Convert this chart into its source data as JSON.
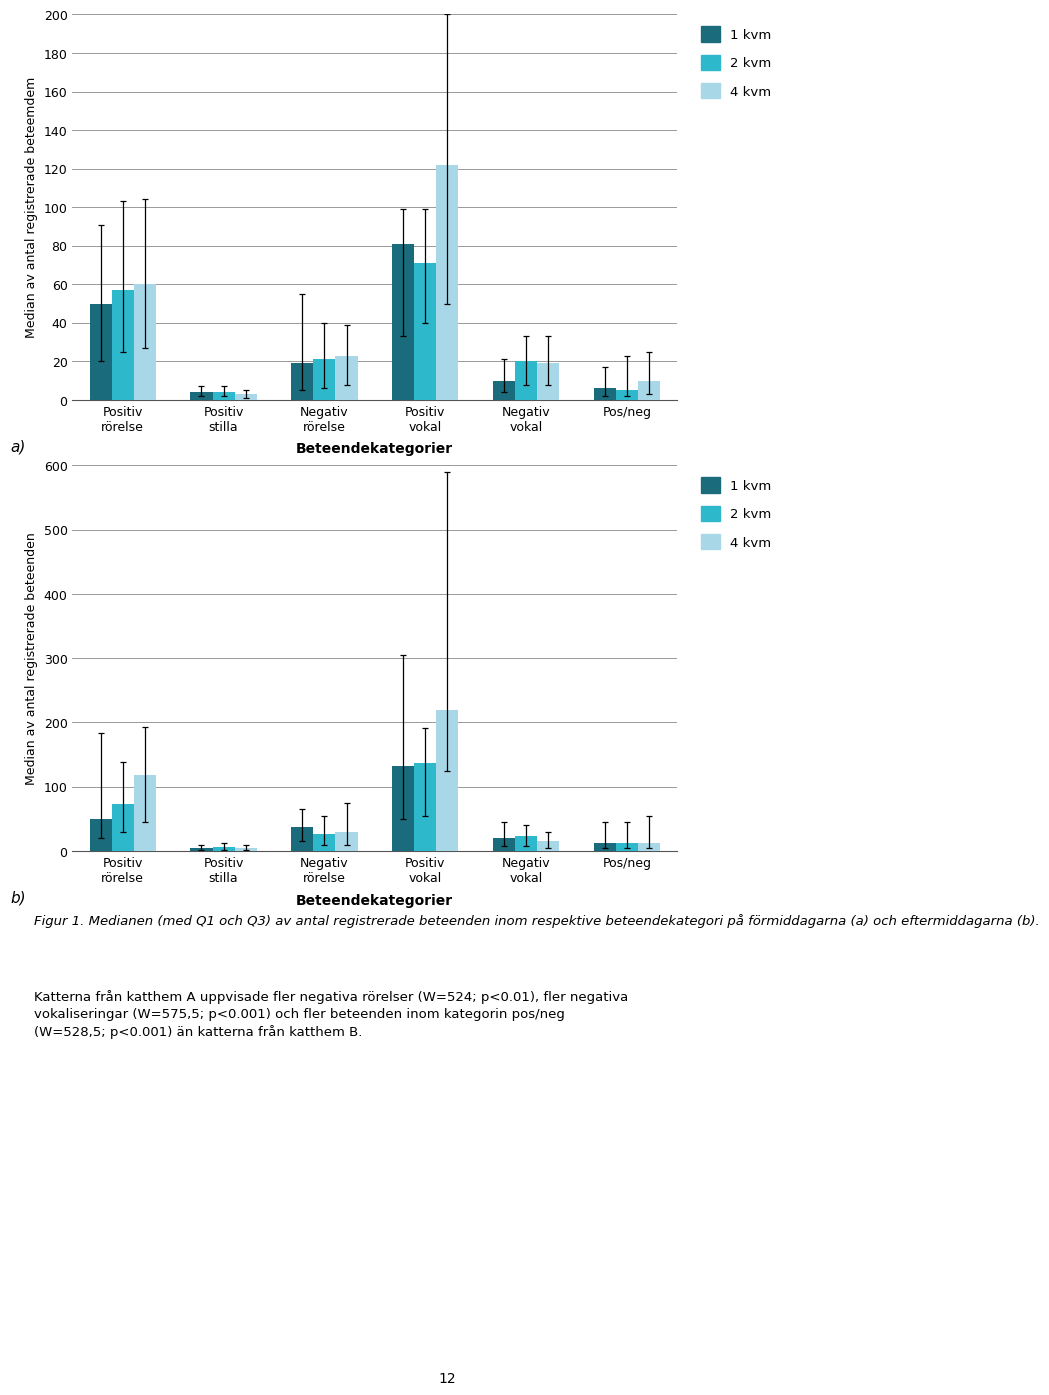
{
  "chart1": {
    "ylabel": "Median av antal registrerade beteemdem",
    "xlabel": "Beteendekategorier",
    "ylim": [
      0,
      200
    ],
    "yticks": [
      0,
      20,
      40,
      60,
      80,
      100,
      120,
      140,
      160,
      180,
      200
    ],
    "categories": [
      "Positiv\nrörelse",
      "Positiv\nstilla",
      "Negativ\nrörelse",
      "Positiv\nvokal",
      "Negativ\nvokal",
      "Pos/neg"
    ],
    "medians": [
      [
        50,
        4,
        19,
        81,
        10,
        6
      ],
      [
        57,
        4,
        21,
        71,
        20,
        5
      ],
      [
        60,
        3,
        23,
        122,
        19,
        10
      ]
    ],
    "q1": [
      [
        20,
        2,
        5,
        33,
        4,
        2
      ],
      [
        25,
        2,
        6,
        40,
        8,
        2
      ],
      [
        27,
        1,
        8,
        50,
        8,
        3
      ]
    ],
    "q3": [
      [
        91,
        7,
        55,
        99,
        21,
        17
      ],
      [
        103,
        7,
        40,
        99,
        33,
        23
      ],
      [
        104,
        5,
        39,
        200,
        33,
        25
      ]
    ],
    "colors": [
      "#1a6b7c",
      "#2eb8cc",
      "#a8d8e8"
    ],
    "legend_labels": [
      "1 kvm",
      "2 kvm",
      "4 kvm"
    ]
  },
  "chart2": {
    "ylabel": "Median av antal registrerade beteenden",
    "xlabel": "Beteendekategorier",
    "ylim": [
      0,
      600
    ],
    "yticks": [
      0,
      100,
      200,
      300,
      400,
      500,
      600
    ],
    "categories": [
      "Positiv\nrörelse",
      "Positiv\nstilla",
      "Negativ\nrörelse",
      "Positiv\nvokal",
      "Negativ\nvokal",
      "Pos/neg"
    ],
    "medians": [
      [
        50,
        5,
        38,
        133,
        20,
        12
      ],
      [
        73,
        6,
        26,
        137,
        23,
        12
      ],
      [
        118,
        5,
        30,
        220,
        16,
        13
      ]
    ],
    "q1": [
      [
        20,
        2,
        15,
        50,
        8,
        4
      ],
      [
        30,
        2,
        10,
        55,
        8,
        4
      ],
      [
        45,
        2,
        10,
        125,
        5,
        4
      ]
    ],
    "q3": [
      [
        183,
        10,
        65,
        305,
        45,
        45
      ],
      [
        138,
        12,
        55,
        192,
        40,
        45
      ],
      [
        193,
        9,
        75,
        590,
        30,
        55
      ]
    ],
    "colors": [
      "#1a6b7c",
      "#2eb8cc",
      "#a8d8e8"
    ],
    "legend_labels": [
      "1 kvm",
      "2 kvm",
      "4 kvm"
    ]
  },
  "label_a": "a)",
  "label_b": "b)",
  "figcaption_normal": "Figur 1. ",
  "figcaption_italic": "Medianen (med Q1 och Q3) av antal registrerade beteenden inom respektive beteendekategori på förmiddagarna (a) och eftermiddagarna (b).",
  "bodytext_line1": "Katterna från katthem A uppvisade fler negativa rörelser (W=524; p<0.01), fler negativa",
  "bodytext_line2": "vokaliseringar (W=575,5; p<0.001) och fler beteenden inom kategorin pos/neg",
  "bodytext_line3": "(W=528,5; p<0.001) än katterna från katthem B.",
  "page_number": "12",
  "background_color": "#ffffff"
}
